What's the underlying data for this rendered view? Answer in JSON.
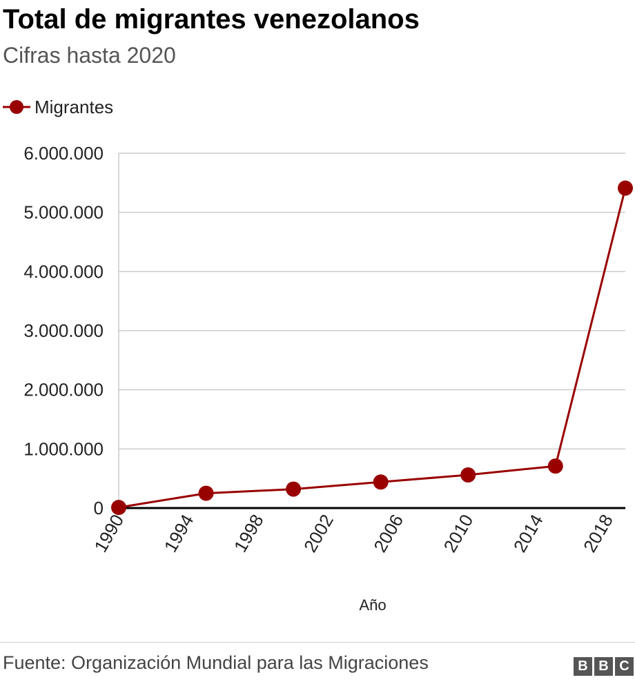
{
  "header": {
    "title": "Total de migrantes venezolanos",
    "subtitle": "Cifras hasta 2020"
  },
  "legend": {
    "label": "Migrantes",
    "color": "#990000"
  },
  "footer": {
    "source": "Fuente: Organización Mundial para las Migraciones",
    "logo_letters": [
      "B",
      "B",
      "C"
    ]
  },
  "chart_data": {
    "type": "line",
    "title": "Total de migrantes venezolanos",
    "subtitle": "Cifras hasta 2020",
    "xlabel": "Año",
    "ylabel": "",
    "xlim": [
      1990,
      2019
    ],
    "ylim": [
      0,
      6000000
    ],
    "x_ticks": [
      1990,
      1994,
      1998,
      2002,
      2006,
      2010,
      2014,
      2018
    ],
    "x_tick_labels": [
      "1990",
      "1994",
      "1998",
      "2002",
      "2006",
      "2010",
      "2014",
      "2018"
    ],
    "y_ticks": [
      0,
      1000000,
      2000000,
      3000000,
      4000000,
      5000000,
      6000000
    ],
    "y_tick_labels": [
      "0",
      "1.000.000",
      "2.000.000",
      "3.000.000",
      "4.000.000",
      "5.000.000",
      "6.000.000"
    ],
    "grid": true,
    "legend_position": "top-left",
    "series": [
      {
        "name": "Migrantes",
        "color": "#990000",
        "x": [
          1990,
          1995,
          2000,
          2005,
          2010,
          2015,
          2019
        ],
        "y": [
          10000,
          250000,
          320000,
          440000,
          560000,
          710000,
          5410000
        ]
      }
    ]
  }
}
